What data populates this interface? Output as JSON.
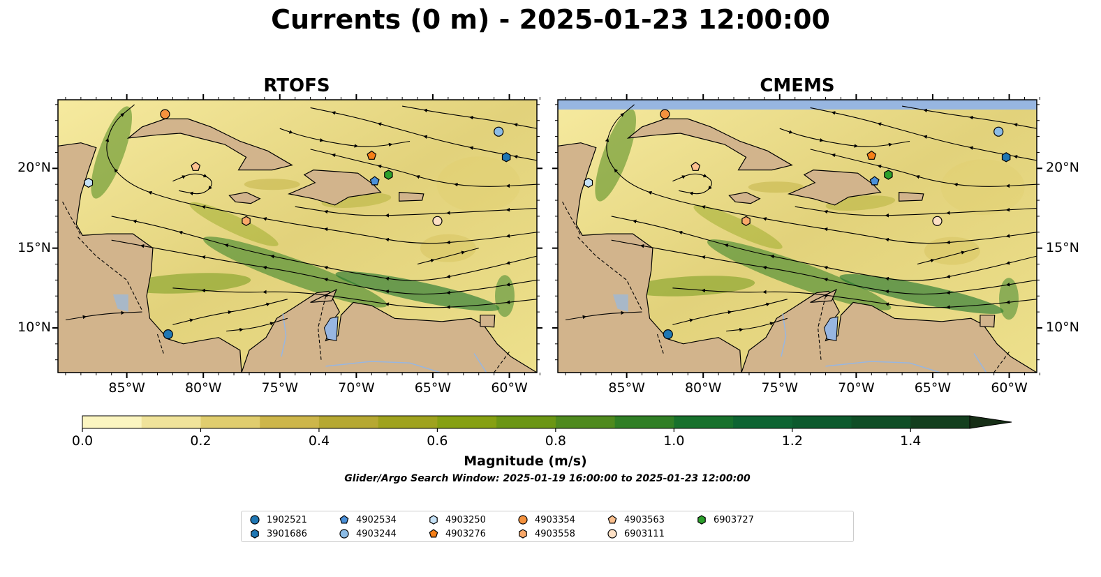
{
  "title": "Currents (0 m) - 2025-01-23 12:00:00",
  "panels": [
    {
      "title": "RTOFS"
    },
    {
      "title": "CMEMS"
    }
  ],
  "map": {
    "lon_ticks": [
      "85°W",
      "80°W",
      "75°W",
      "70°W",
      "65°W",
      "60°W"
    ],
    "lat_ticks": [
      "20°N",
      "15°N",
      "10°N"
    ],
    "extent": {
      "lon": [
        -89.5,
        -58.2
      ],
      "lat": [
        7.2,
        24.3
      ]
    },
    "colors": {
      "land": "#d2b48c",
      "lakes": "#97b6e1",
      "ocean_low": "#fbf5c0",
      "ocean_high": "#0c5e2c"
    }
  },
  "colorbar": {
    "label": "Magnitude (m/s)",
    "range": [
      0.0,
      1.5
    ],
    "extend": "max",
    "tick_labels": [
      "0.0",
      "0.2",
      "0.4",
      "0.6",
      "0.8",
      "1.0",
      "1.2",
      "1.4"
    ],
    "colors": [
      "#fbf5c0",
      "#f0e39a",
      "#e0cd6e",
      "#cdb64a",
      "#b6a832",
      "#9fa21e",
      "#86a012",
      "#6b9614",
      "#4f8a1e",
      "#307f25",
      "#17712c",
      "#0d6432",
      "#0c5a2d",
      "#0f4e26",
      "#133f1e",
      "#162e16"
    ]
  },
  "search_window": "Glider/Argo Search Window: 2025-01-19 16:00:00 to 2025-01-23 12:00:00",
  "legend": [
    {
      "id": "1902521",
      "marker": "circle",
      "color": "#1f77b4"
    },
    {
      "id": "3901686",
      "marker": "hexagon",
      "color": "#1f77b4"
    },
    {
      "id": "4902534",
      "marker": "pentagon",
      "color": "#4a90d9"
    },
    {
      "id": "4903244",
      "marker": "circle",
      "color": "#8cbce6"
    },
    {
      "id": "4903250",
      "marker": "hexagon",
      "color": "#c6e2f7"
    },
    {
      "id": "4903276",
      "marker": "pentagon",
      "color": "#f57f17"
    },
    {
      "id": "4903354",
      "marker": "circle",
      "color": "#f5923e"
    },
    {
      "id": "4903558",
      "marker": "hexagon",
      "color": "#f9a869"
    },
    {
      "id": "4903563",
      "marker": "pentagon",
      "color": "#fcc08e"
    },
    {
      "id": "6903111",
      "marker": "circle",
      "color": "#fde0c5"
    },
    {
      "id": "6903727",
      "marker": "hexagon",
      "color": "#2ca02c"
    }
  ],
  "floats": [
    {
      "id": "1902521",
      "lon": -82.3,
      "lat": 9.6
    },
    {
      "id": "3901686",
      "lon": -60.2,
      "lat": 20.7
    },
    {
      "id": "4902534",
      "lon": -68.8,
      "lat": 19.2
    },
    {
      "id": "4903244",
      "lon": -60.7,
      "lat": 22.3
    },
    {
      "id": "4903250",
      "lon": -87.5,
      "lat": 19.1
    },
    {
      "id": "4903276",
      "lon": -69.0,
      "lat": 20.8
    },
    {
      "id": "4903354",
      "lon": -82.5,
      "lat": 23.4
    },
    {
      "id": "4903558",
      "lon": -77.2,
      "lat": 16.7
    },
    {
      "id": "4903563",
      "lon": -80.5,
      "lat": 20.1
    },
    {
      "id": "6903111",
      "lon": -64.7,
      "lat": 16.7
    },
    {
      "id": "6903727",
      "lon": -67.9,
      "lat": 19.6
    }
  ]
}
